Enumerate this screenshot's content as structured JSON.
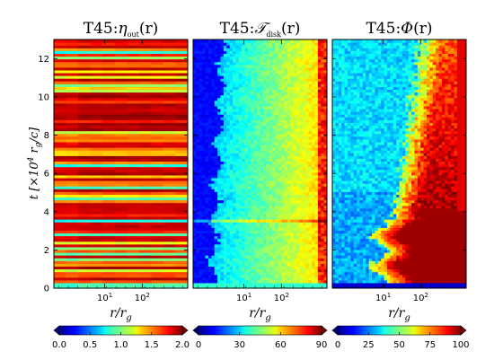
{
  "chart_data": [
    {
      "type": "heatmap",
      "title": "T45:η_out(r)",
      "title_html": {
        "pre": "T45:",
        "sym": "η",
        "sub": "out",
        "post": "(r)"
      },
      "xlabel": "r/r_g",
      "ylabel": "t [×10^4 r_g/c]",
      "x_scale": "log",
      "xticks": [
        "10^1",
        "10^2"
      ],
      "yticks": [
        0,
        2,
        4,
        6,
        8,
        10,
        12
      ],
      "ylim": [
        0,
        13
      ],
      "colorbar": {
        "min": 0.0,
        "max": 2.0,
        "ticks": [
          "0.0",
          "0.5",
          "1.0",
          "1.5",
          "2.0"
        ],
        "colormap": "jet",
        "extend": "both"
      }
    },
    {
      "type": "heatmap",
      "title": "T45:𝒯_disk(r)",
      "title_html": {
        "pre": "T45:",
        "sym": "𝒯",
        "sub": "disk",
        "post": "(r)"
      },
      "xlabel": "r/r_g",
      "x_scale": "log",
      "xticks": [
        "10^1",
        "10^2"
      ],
      "ylim": [
        0,
        13
      ],
      "colorbar": {
        "min": 0,
        "max": 90,
        "ticks": [
          "0",
          "30",
          "60",
          "90"
        ],
        "colormap": "jet",
        "extend": "both"
      }
    },
    {
      "type": "heatmap",
      "title": "T45:Φ(r)",
      "title_html": {
        "pre": "T45:",
        "sym": "Φ",
        "sub": "",
        "post": "(r)"
      },
      "xlabel": "r/r_g",
      "x_scale": "log",
      "xticks": [
        "10^1",
        "10^2"
      ],
      "ylim": [
        0,
        13
      ],
      "colorbar": {
        "min": 0,
        "max": 100,
        "ticks": [
          "0",
          "25",
          "50",
          "75",
          "100"
        ],
        "colormap": "jet",
        "extend": "both"
      }
    }
  ]
}
